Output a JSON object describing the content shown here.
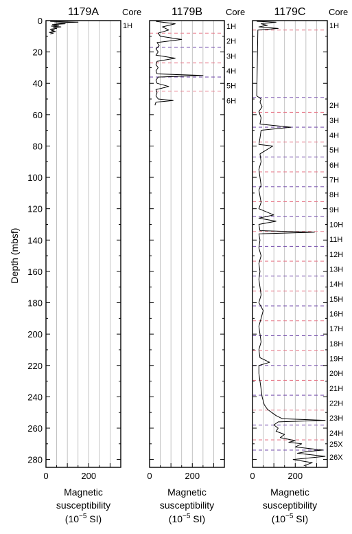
{
  "figure": {
    "ylabel": "Depth (mbsf)",
    "core_header": "Core",
    "xlabel_line1": "Magnetic",
    "xlabel_line2": "susceptibility",
    "xlabel_unit_pre": "(10",
    "xlabel_unit_exp": "−5",
    "xlabel_unit_post": " SI)",
    "boundary_colors": [
      "#e87a8a",
      "#7a55b0"
    ]
  },
  "chart_data": [
    {
      "type": "line",
      "title": "1179A",
      "xlabel": "Magnetic susceptibility (10^-5 SI)",
      "ylabel": "Depth (mbsf)",
      "xlim": [
        0,
        350
      ],
      "ylim": [
        285,
        0
      ],
      "x_ticks": [
        0,
        200
      ],
      "y_ticks": [
        0,
        20,
        40,
        60,
        80,
        100,
        120,
        140,
        160,
        180,
        200,
        220,
        240,
        260,
        280
      ],
      "grid": true,
      "series": [
        {
          "depth": [
            0.5,
            1,
            1.5,
            2,
            2.5,
            3,
            3.5,
            4,
            4.5,
            5,
            5.5,
            6,
            6.5,
            7,
            7.5,
            8,
            8.5
          ],
          "values": [
            20,
            150,
            40,
            90,
            30,
            60,
            25,
            70,
            35,
            50,
            20,
            40,
            25,
            45,
            15,
            35,
            20
          ]
        }
      ],
      "cores": [
        {
          "label": "1H",
          "depth": 3
        }
      ],
      "boundaries": []
    },
    {
      "type": "line",
      "title": "1179B",
      "xlabel": "Magnetic susceptibility (10^-5 SI)",
      "ylabel": "Depth (mbsf)",
      "xlim": [
        0,
        350
      ],
      "ylim": [
        285,
        0
      ],
      "x_ticks": [
        0,
        200
      ],
      "grid": true,
      "series": [
        {
          "depth": [
            0.5,
            2,
            4,
            6,
            8,
            10,
            12,
            14,
            16,
            18,
            20,
            22,
            24,
            26,
            28,
            30,
            32,
            34,
            35,
            36,
            38,
            40,
            42,
            44,
            46,
            48,
            50,
            51,
            52,
            54
          ],
          "values": [
            30,
            120,
            60,
            90,
            40,
            50,
            150,
            35,
            45,
            30,
            40,
            30,
            120,
            35,
            30,
            40,
            30,
            35,
            250,
            40,
            30,
            35,
            90,
            30,
            35,
            30,
            40,
            110,
            30,
            25
          ]
        }
      ],
      "cores": [
        {
          "label": "1H",
          "depth": 3.5
        },
        {
          "label": "2H",
          "depth": 13
        },
        {
          "label": "3H",
          "depth": 22.5
        },
        {
          "label": "4H",
          "depth": 32
        },
        {
          "label": "5H",
          "depth": 41.5
        },
        {
          "label": "6H",
          "depth": 51
        }
      ],
      "boundaries": [
        8,
        17,
        27,
        36,
        45
      ]
    },
    {
      "type": "line",
      "title": "1179C",
      "xlabel": "Magnetic susceptibility (10^-5 SI)",
      "ylabel": "Depth (mbsf)",
      "xlim": [
        0,
        350
      ],
      "ylim": [
        285,
        0
      ],
      "x_ticks": [
        0,
        200
      ],
      "grid": true,
      "series": [
        {
          "depth": [
            0.5,
            1,
            2,
            3,
            4,
            5,
            6,
            48,
            50,
            52,
            55,
            58,
            62,
            66,
            68,
            70,
            75,
            79,
            80,
            85,
            90,
            95,
            100,
            105,
            108,
            112,
            116,
            120,
            124,
            126,
            128,
            130,
            134,
            135,
            136,
            140,
            145,
            150,
            155,
            160,
            165,
            170,
            175,
            180,
            185,
            190,
            195,
            200,
            205,
            210,
            215,
            218,
            220,
            225,
            230,
            235,
            240,
            245,
            248,
            250,
            252,
            254,
            255,
            256,
            258,
            260,
            262,
            264,
            266,
            268,
            269,
            270,
            272,
            274,
            275,
            276,
            278,
            280,
            282,
            284
          ],
          "values": [
            20,
            110,
            40,
            70,
            30,
            120,
            25,
            20,
            40,
            35,
            45,
            30,
            40,
            35,
            180,
            40,
            35,
            30,
            95,
            35,
            40,
            30,
            35,
            40,
            30,
            35,
            40,
            30,
            100,
            30,
            110,
            30,
            35,
            290,
            30,
            35,
            30,
            40,
            30,
            35,
            30,
            35,
            40,
            30,
            50,
            40,
            30,
            35,
            40,
            30,
            35,
            80,
            30,
            30,
            35,
            40,
            45,
            55,
            70,
            90,
            110,
            140,
            340,
            120,
            100,
            120,
            110,
            150,
            130,
            200,
            170,
            230,
            200,
            330,
            250,
            210,
            340,
            190,
            280,
            240
          ]
        }
      ],
      "cores": [
        {
          "label": "1H",
          "depth": 3
        },
        {
          "label": "2H",
          "depth": 54
        },
        {
          "label": "3H",
          "depth": 63.5
        },
        {
          "label": "4H",
          "depth": 73
        },
        {
          "label": "5H",
          "depth": 82.5
        },
        {
          "label": "6H",
          "depth": 92
        },
        {
          "label": "7H",
          "depth": 101.5
        },
        {
          "label": "8H",
          "depth": 111
        },
        {
          "label": "9H",
          "depth": 120.5
        },
        {
          "label": "10H",
          "depth": 130
        },
        {
          "label": "11H",
          "depth": 139.5
        },
        {
          "label": "12H",
          "depth": 149
        },
        {
          "label": "13H",
          "depth": 158.5
        },
        {
          "label": "14H",
          "depth": 168
        },
        {
          "label": "15H",
          "depth": 177.5
        },
        {
          "label": "16H",
          "depth": 187
        },
        {
          "label": "17H",
          "depth": 196.5
        },
        {
          "label": "18H",
          "depth": 206
        },
        {
          "label": "19H",
          "depth": 215.5
        },
        {
          "label": "20H",
          "depth": 225
        },
        {
          "label": "21H",
          "depth": 234.5
        },
        {
          "label": "22H",
          "depth": 244
        },
        {
          "label": "23H",
          "depth": 253.5
        },
        {
          "label": "24H",
          "depth": 263
        },
        {
          "label": "25X",
          "depth": 270
        },
        {
          "label": "26X",
          "depth": 278.5
        }
      ],
      "boundaries": [
        6,
        49,
        58.5,
        68,
        77.5,
        87,
        96.5,
        106,
        115.5,
        125,
        134.5,
        144,
        153.5,
        163,
        172.5,
        182,
        191.5,
        201,
        210.5,
        220,
        229.5,
        239,
        248.5,
        258,
        267.5,
        274
      ]
    }
  ]
}
